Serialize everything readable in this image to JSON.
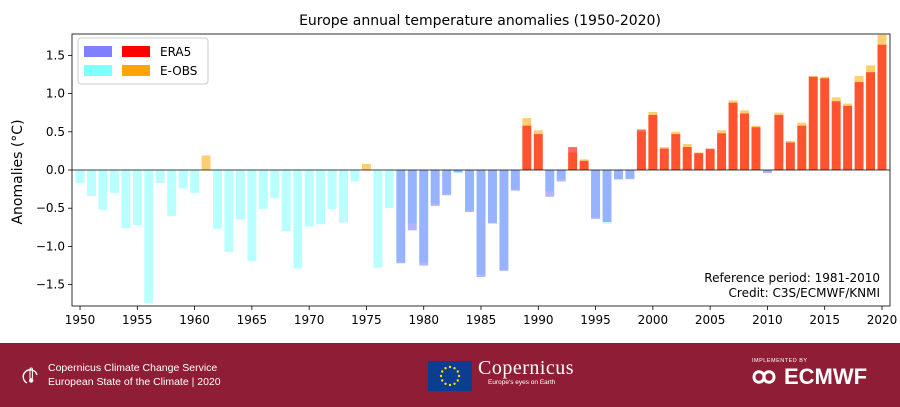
{
  "chart_data": {
    "type": "bar",
    "title": "Europe annual temperature anomalies (1950-2020)",
    "xlabel": "",
    "ylabel": "Anomalies (°C)",
    "xlim": [
      1949.3,
      2020.7
    ],
    "ylim": [
      -1.78,
      1.78
    ],
    "xticks": [
      1950,
      1955,
      1960,
      1965,
      1970,
      1975,
      1980,
      1985,
      1990,
      1995,
      2000,
      2005,
      2010,
      2015,
      2020
    ],
    "yticks": [
      -1.5,
      -1.0,
      -0.5,
      0.0,
      0.5,
      1.0,
      1.5
    ],
    "ytick_labels": [
      "−1.5",
      "−1.0",
      "−0.5",
      "0.0",
      "0.5",
      "1.0",
      "1.5"
    ],
    "x": [
      1950,
      1951,
      1952,
      1953,
      1954,
      1955,
      1956,
      1957,
      1958,
      1959,
      1960,
      1961,
      1962,
      1963,
      1964,
      1965,
      1966,
      1967,
      1968,
      1969,
      1970,
      1971,
      1972,
      1973,
      1974,
      1975,
      1976,
      1977,
      1978,
      1979,
      1980,
      1981,
      1982,
      1983,
      1984,
      1985,
      1986,
      1987,
      1988,
      1989,
      1990,
      1991,
      1992,
      1993,
      1994,
      1995,
      1996,
      1997,
      1998,
      1999,
      2000,
      2001,
      2002,
      2003,
      2004,
      2005,
      2006,
      2007,
      2008,
      2009,
      2010,
      2011,
      2012,
      2013,
      2014,
      2015,
      2016,
      2017,
      2018,
      2019,
      2020
    ],
    "series": [
      {
        "name": "ERA5",
        "values": [
          null,
          null,
          null,
          null,
          null,
          null,
          null,
          null,
          null,
          null,
          null,
          null,
          null,
          null,
          null,
          null,
          null,
          null,
          null,
          null,
          null,
          null,
          null,
          null,
          null,
          null,
          null,
          null,
          -1.22,
          -0.79,
          -1.25,
          -0.47,
          -0.33,
          -0.03,
          -0.55,
          -1.4,
          -0.7,
          -1.32,
          -0.27,
          0.58,
          0.47,
          -0.35,
          -0.15,
          0.3,
          0.12,
          -0.64,
          -0.68,
          -0.12,
          -0.12,
          0.53,
          0.72,
          0.28,
          0.47,
          0.3,
          0.22,
          0.28,
          0.48,
          0.88,
          0.74,
          0.56,
          -0.04,
          0.72,
          0.36,
          0.58,
          1.22,
          1.2,
          0.9,
          0.84,
          1.15,
          1.28,
          1.64
        ]
      },
      {
        "name": "E-OBS",
        "values": [
          -0.17,
          -0.34,
          -0.52,
          -0.3,
          -0.76,
          -0.72,
          -1.74,
          -0.17,
          -0.6,
          -0.24,
          -0.3,
          0.19,
          -0.77,
          -1.07,
          -0.65,
          -1.19,
          -0.51,
          -0.37,
          -0.8,
          -1.29,
          -0.74,
          -0.71,
          -0.51,
          -0.69,
          -0.15,
          0.08,
          -1.28,
          -0.5,
          -1.21,
          -0.7,
          -1.21,
          -0.44,
          -0.31,
          -0.04,
          -0.53,
          -1.37,
          -0.69,
          -1.3,
          -0.25,
          0.68,
          0.52,
          -0.28,
          -0.12,
          0.23,
          0.14,
          -0.62,
          -0.7,
          -0.13,
          -0.11,
          0.5,
          0.76,
          0.3,
          0.5,
          0.34,
          0.23,
          0.27,
          0.52,
          0.91,
          0.78,
          0.58,
          -0.02,
          0.75,
          0.38,
          0.62,
          1.23,
          1.22,
          0.95,
          0.87,
          1.23,
          1.37,
          1.77
        ]
      }
    ],
    "colors": {
      "era5_positive": "#ff0000",
      "era5_negative": "#8080ff",
      "eobs_positive": "#ffa500",
      "eobs_negative": "#80ffff"
    },
    "legend": {
      "placement": "top-left",
      "entries": [
        {
          "label": "ERA5",
          "neg_color": "#8080ff",
          "pos_color": "#ff0000"
        },
        {
          "label": "E-OBS",
          "neg_color": "#80ffff",
          "pos_color": "#ffa500"
        }
      ]
    },
    "annotations": [
      "Reference period: 1981-2010",
      "Credit: C3S/ECMWF/KNMI"
    ],
    "grid": false
  },
  "footer": {
    "background": "#8f1d35",
    "service_line1": "Copernicus Climate Change Service",
    "service_line2": "European State of the Climate | 2020",
    "copernicus_name": "Copernicus",
    "copernicus_tagline": "Europe's eyes on Earth",
    "ecmwf_implemented": "IMPLEMENTED BY",
    "ecmwf_name": "ECMWF",
    "icons": [
      "thermometer-icon",
      "eu-flag-icon",
      "copernicus-logo-icon",
      "ecmwf-logo-icon"
    ]
  }
}
